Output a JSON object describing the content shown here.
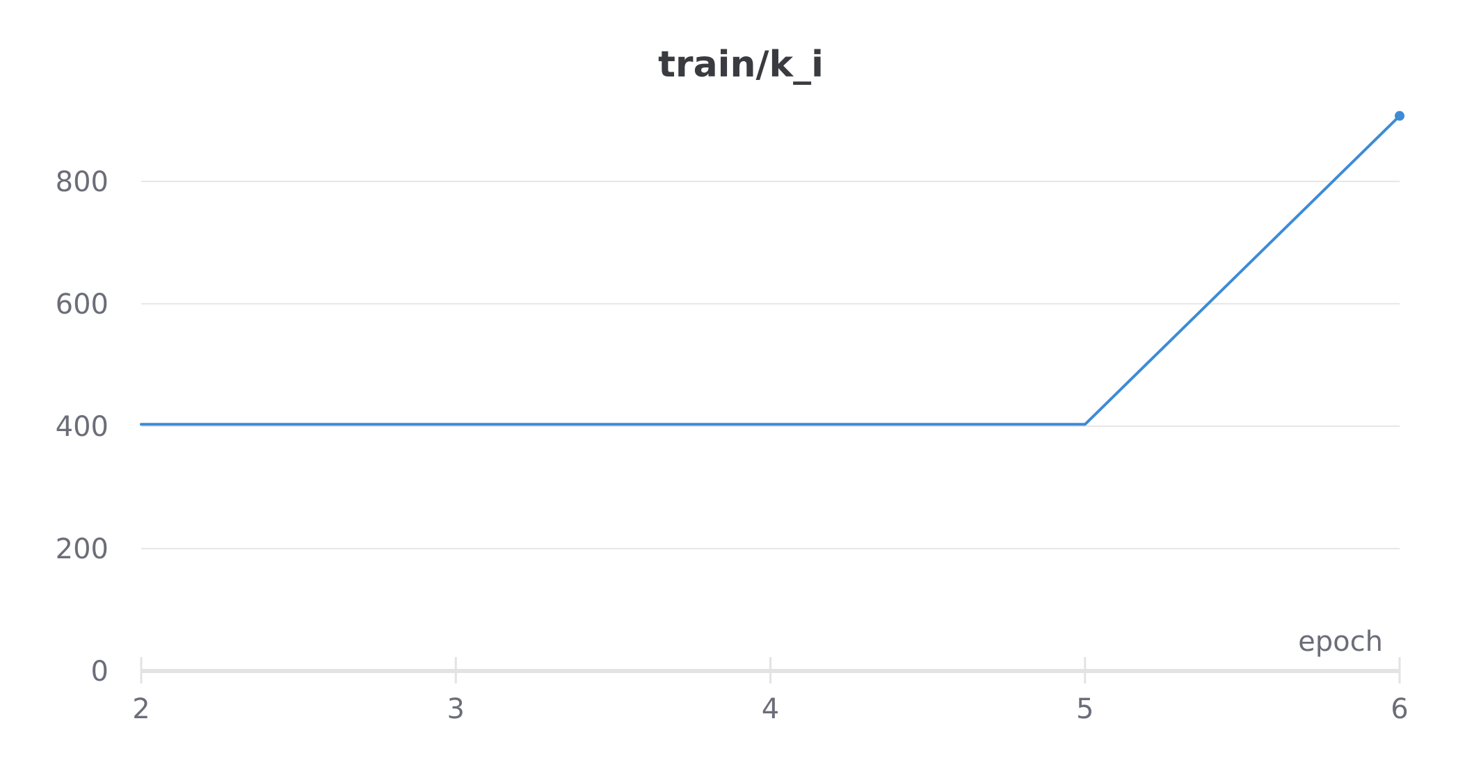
{
  "chart_data": {
    "type": "line",
    "title": "train/k_i",
    "xlabel": "epoch",
    "ylabel": "",
    "xlim": [
      2,
      6
    ],
    "ylim": [
      0,
      960
    ],
    "x_ticks": [
      2,
      3,
      4,
      5,
      6
    ],
    "y_ticks": [
      0,
      200,
      400,
      600,
      800
    ],
    "grid": true,
    "series": [
      {
        "x": [
          2,
          3,
          4,
          5,
          6
        ],
        "values": [
          403,
          403,
          403,
          403,
          907
        ],
        "color": "#3d8bd6",
        "end_marker": true
      }
    ]
  }
}
